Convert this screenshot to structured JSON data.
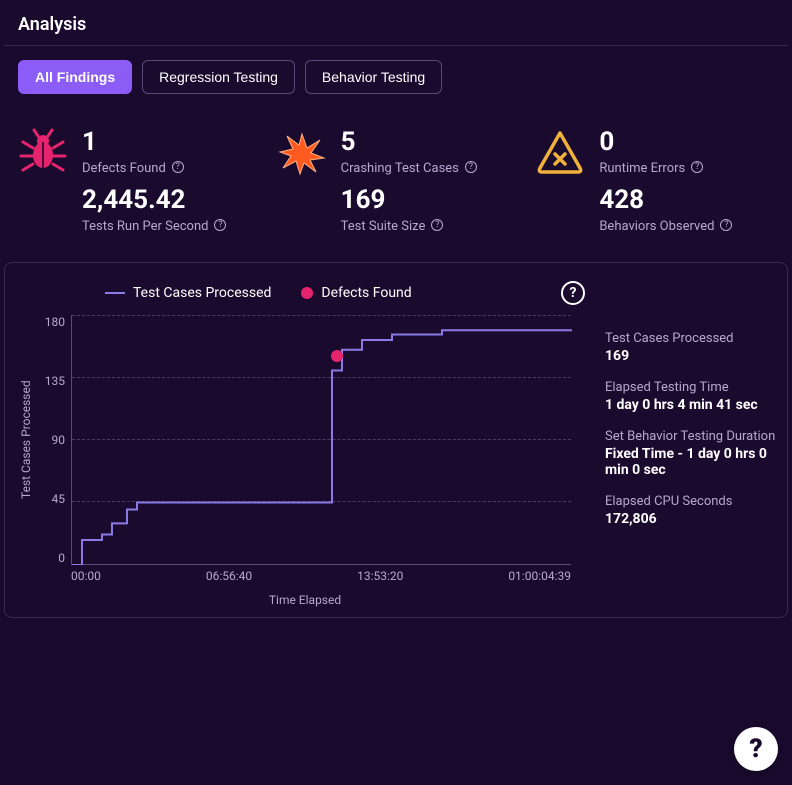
{
  "title": "Analysis",
  "tabs": [
    {
      "label": "All Findings",
      "active": true
    },
    {
      "label": "Regression Testing",
      "active": false
    },
    {
      "label": "Behavior Testing",
      "active": false
    }
  ],
  "stats": {
    "defects": {
      "value": "1",
      "label": "Defects Found",
      "icon": "bug",
      "icon_color": "#e6246e"
    },
    "crashing": {
      "value": "5",
      "label": "Crashing Test Cases",
      "icon": "explosion",
      "icon_color": "#ff5a1f"
    },
    "runtime": {
      "value": "0",
      "label": "Runtime Errors",
      "icon": "warn",
      "icon_color": "#f0b23a"
    },
    "tps": {
      "value": "2,445.42",
      "label": "Tests Run Per Second"
    },
    "suite": {
      "value": "169",
      "label": "Test Suite Size"
    },
    "behaviors": {
      "value": "428",
      "label": "Behaviors Observed"
    }
  },
  "chart": {
    "type": "line-step",
    "legend": {
      "series1": "Test Cases Processed",
      "series2": "Defects Found"
    },
    "y_label": "Test Cases Processed",
    "x_label": "Time Elapsed",
    "y_ticks": [
      "180",
      "135",
      "90",
      "45",
      "0"
    ],
    "x_ticks": [
      "00:00",
      "06:56:40",
      "13:53:20",
      "01:00:04:39"
    ],
    "ylim": [
      0,
      180
    ],
    "line_color": "#8b7ae6",
    "defect_color": "#e6246e",
    "grid_color": "#4a3a6a",
    "background": "#1a0a2e",
    "series_points": [
      [
        0,
        0
      ],
      [
        0.02,
        0
      ],
      [
        0.02,
        18
      ],
      [
        0.06,
        18
      ],
      [
        0.06,
        22
      ],
      [
        0.08,
        22
      ],
      [
        0.08,
        30
      ],
      [
        0.11,
        30
      ],
      [
        0.11,
        40
      ],
      [
        0.13,
        40
      ],
      [
        0.13,
        45
      ],
      [
        0.52,
        45
      ],
      [
        0.52,
        140
      ],
      [
        0.54,
        140
      ],
      [
        0.54,
        155
      ],
      [
        0.58,
        155
      ],
      [
        0.58,
        162
      ],
      [
        0.64,
        162
      ],
      [
        0.64,
        166
      ],
      [
        0.74,
        166
      ],
      [
        0.74,
        169
      ],
      [
        1.0,
        169
      ]
    ],
    "defect_points": [
      [
        0.53,
        150
      ]
    ]
  },
  "side_stats": [
    {
      "label": "Test Cases Processed",
      "value": "169"
    },
    {
      "label": "Elapsed Testing Time",
      "value": "1 day 0 hrs 4 min 41 sec"
    },
    {
      "label": "Set Behavior Testing Duration",
      "value": "Fixed Time - 1 day 0 hrs 0 min 0 sec"
    },
    {
      "label": "Elapsed CPU Seconds",
      "value": "172,806"
    }
  ],
  "colors": {
    "bg": "#1a0a2e",
    "accent": "#8b5cf6",
    "text_muted": "#b8a8d0",
    "border": "#3a2a4e"
  }
}
